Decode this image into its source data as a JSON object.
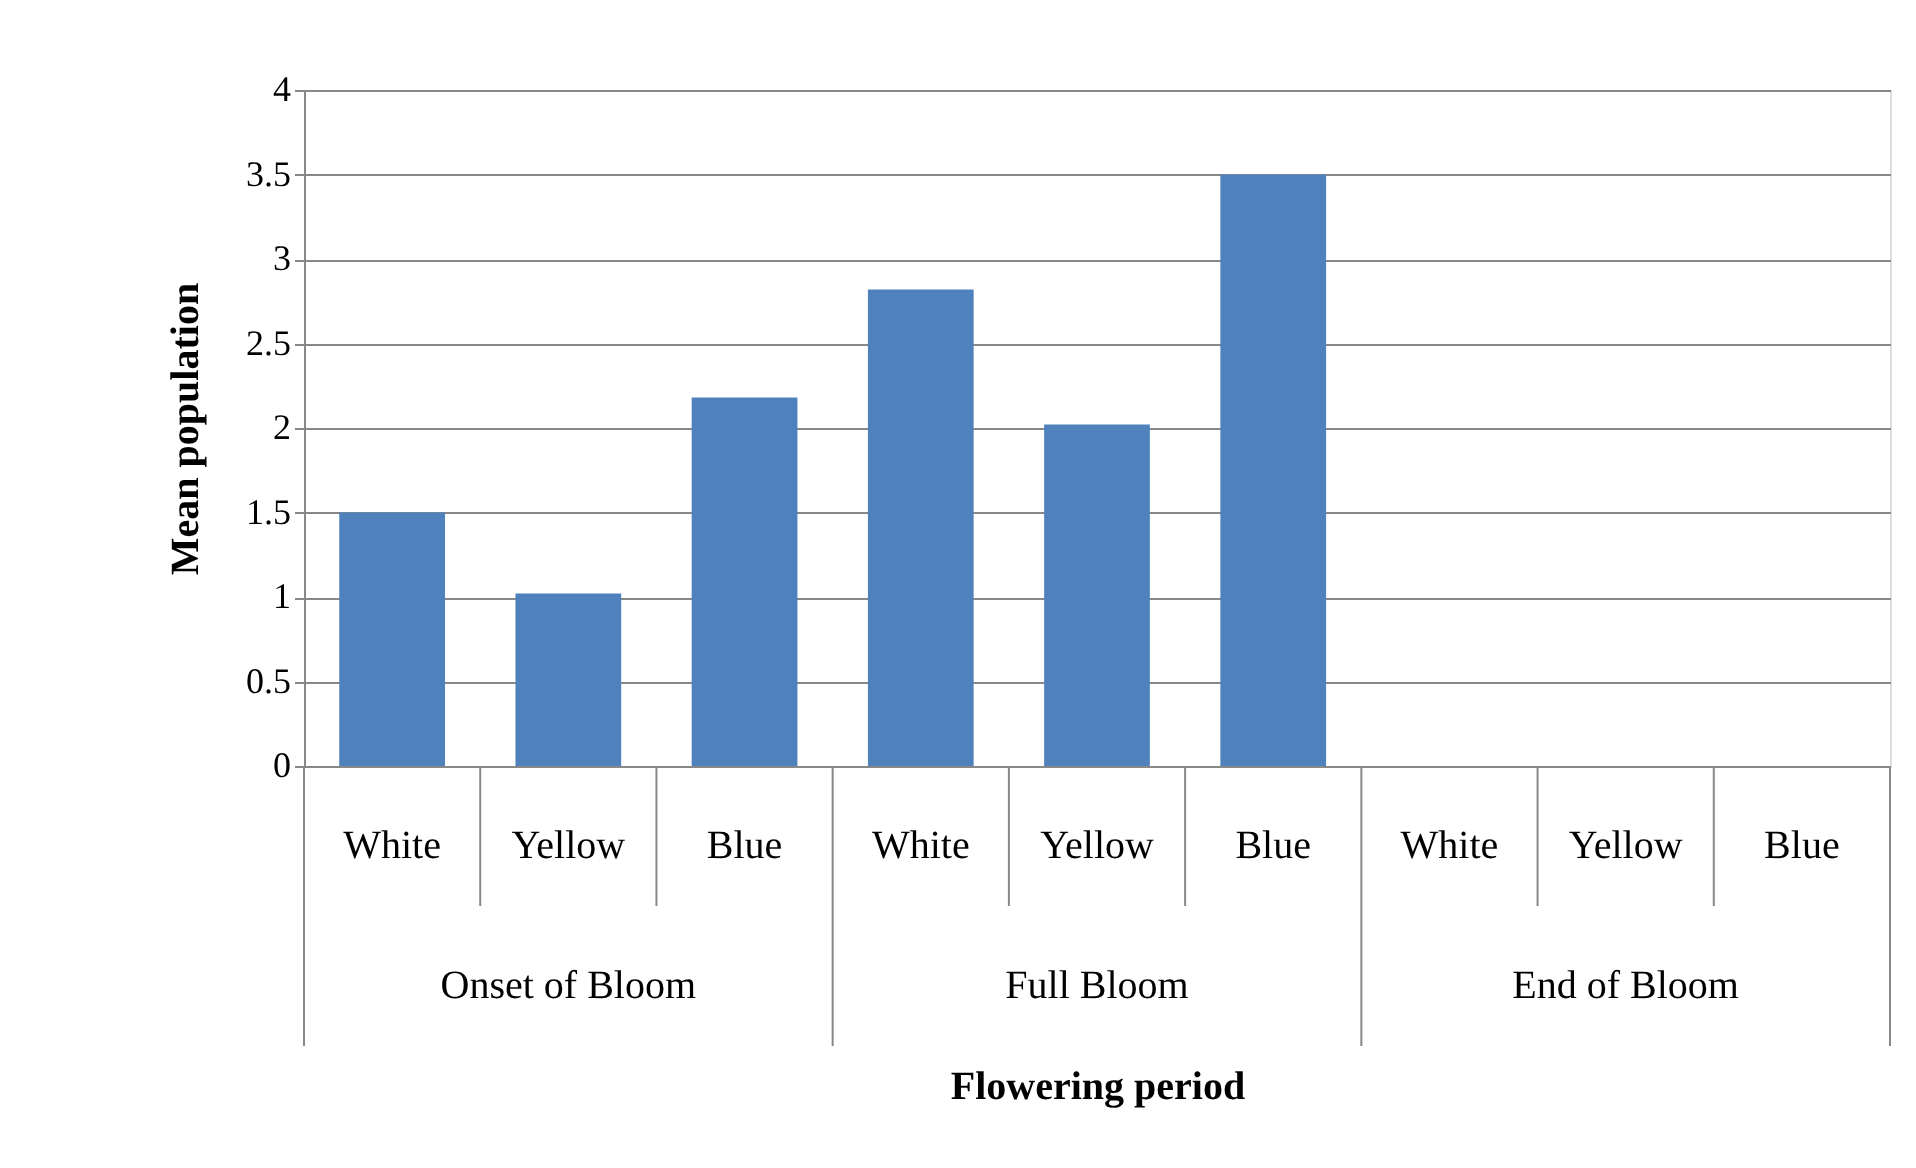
{
  "chart_data": {
    "type": "bar",
    "xlabel": "Flowering period",
    "ylabel": "Mean population",
    "categories": [
      "White",
      "Yellow",
      "Blue",
      "White",
      "Yellow",
      "Blue",
      "White",
      "Yellow",
      "Blue"
    ],
    "values": [
      1.5,
      1.02,
      2.18,
      2.82,
      2.02,
      3.5,
      0,
      0,
      0
    ],
    "color": "#4f81bd",
    "annotations": [
      "Onset of Bloom",
      "Full Bloom",
      "End of Bloom"
    ],
    "ylim": [
      0,
      4
    ],
    "yticks": [
      0,
      0.5,
      1,
      1.5,
      2,
      2.5,
      3,
      3.5,
      4
    ],
    "grid": "y",
    "legend": false
  }
}
